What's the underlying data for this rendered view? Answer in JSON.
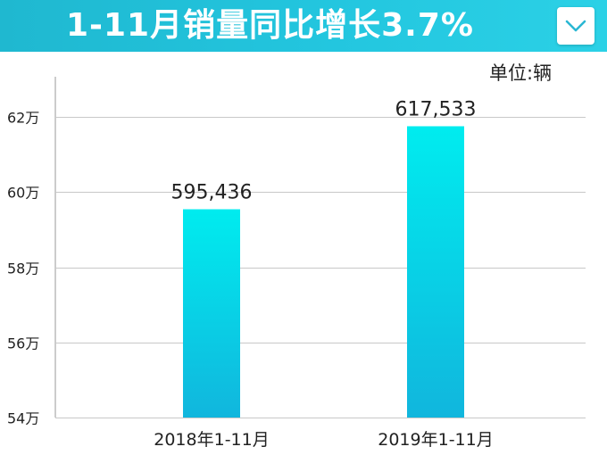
{
  "header": {
    "title": "1-11月销量同比增长3.7%"
  },
  "unit": "单位:辆",
  "colors": {
    "header_bg": "#23c6df",
    "bar_top": "#00ecef",
    "bar_bottom": "#11b6dd",
    "grid": "#c8c8c8"
  },
  "icons": {
    "dropdown": "chevron-down-icon"
  },
  "chart_data": {
    "type": "bar",
    "categories": [
      "2018年1-11月",
      "2019年1-11月"
    ],
    "values": [
      595436,
      617533
    ],
    "value_labels": [
      "595,436",
      "617,533"
    ],
    "ylim": [
      540000,
      630000
    ],
    "yticks": [
      540000,
      560000,
      580000,
      600000,
      620000
    ],
    "ytick_labels": [
      "54万",
      "56万",
      "58万",
      "60万",
      "62万"
    ],
    "grid": true
  }
}
